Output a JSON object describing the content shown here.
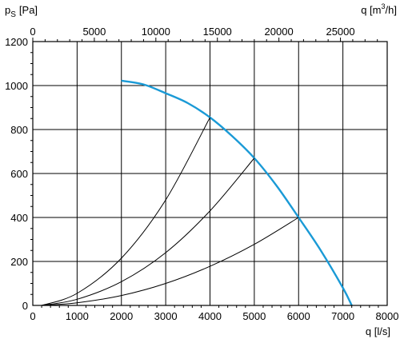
{
  "chart_data": {
    "type": "line",
    "title": "",
    "ylabel_main": "p",
    "ylabel_sub": "S",
    "ylabel_unit": "[Pa]",
    "xlabel": "q [l/s]",
    "top_xlabel_pre": "q [m",
    "top_xlabel_sup": "3",
    "top_xlabel_post": "/h]",
    "xlim": [
      0,
      8000
    ],
    "ylim": [
      0,
      1200
    ],
    "top_xlim_m3h": [
      0,
      28800
    ],
    "grid": true,
    "x_ticks": [
      "0",
      "1000",
      "2000",
      "3000",
      "4000",
      "5000",
      "6000",
      "7000",
      "8000"
    ],
    "y_ticks": [
      "0",
      "200",
      "400",
      "600",
      "800",
      "1000",
      "1200"
    ],
    "top_ticks": [
      "0",
      "5000",
      "10000",
      "15000",
      "20000",
      "25000"
    ],
    "x_tick_values": [
      0,
      1000,
      2000,
      3000,
      4000,
      5000,
      6000,
      7000,
      8000
    ],
    "y_tick_values": [
      0,
      200,
      400,
      600,
      800,
      1000,
      1200
    ],
    "top_tick_values": [
      0,
      5000,
      10000,
      15000,
      20000,
      25000
    ],
    "series": [
      {
        "color": "#1a9ad6",
        "x": [
          2000,
          2500,
          3000,
          3500,
          4000,
          4500,
          5000,
          5500,
          6000,
          6500,
          7000,
          7200
        ],
        "y": [
          1022,
          1005,
          965,
          920,
          855,
          770,
          670,
          545,
          400,
          250,
          80,
          0
        ]
      },
      {
        "color": "#000000",
        "x": [
          200,
          1000,
          2000,
          3000,
          4000
        ],
        "y": [
          0,
          55,
          215,
          480,
          855
        ]
      },
      {
        "color": "#000000",
        "x": [
          200,
          1000,
          2000,
          3000,
          4000,
          5000
        ],
        "y": [
          0,
          28,
          108,
          240,
          430,
          670
        ]
      },
      {
        "color": "#000000",
        "x": [
          200,
          1000,
          2000,
          3000,
          4000,
          5000,
          6000
        ],
        "y": [
          0,
          12,
          45,
          100,
          178,
          278,
          400
        ]
      }
    ]
  }
}
